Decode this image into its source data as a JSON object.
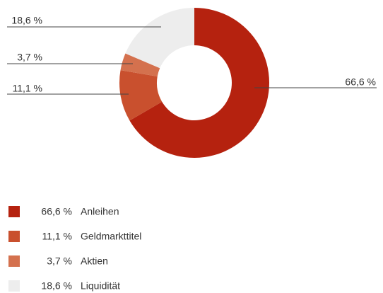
{
  "chart_data": {
    "type": "donut",
    "categories": [
      "Anleihen",
      "Geldmarkttitel",
      "Aktien",
      "Liquidität"
    ],
    "values": [
      66.6,
      11.1,
      3.7,
      18.6
    ],
    "value_labels": [
      "66,6 %",
      "11,1 %",
      "3,7 %",
      "18,6 %"
    ],
    "colors": [
      "#b5220f",
      "#c9502e",
      "#d4714e",
      "#ededed"
    ],
    "legend": "bottom-left"
  }
}
